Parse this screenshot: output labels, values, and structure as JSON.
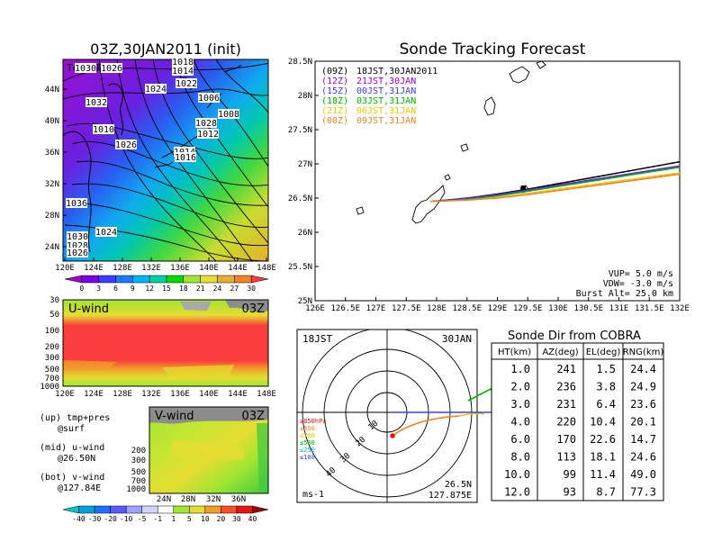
{
  "main_map": {
    "title": "03Z,30JAN2011 (init)",
    "overlay_label": "Temp+Pres",
    "x_ticks": [
      "120E",
      "124E",
      "128E",
      "132E",
      "136E",
      "140E",
      "144E",
      "148E"
    ],
    "y_ticks": [
      "24N",
      "28N",
      "32N",
      "36N",
      "40N",
      "44N"
    ],
    "colorbar_labels": [
      "0",
      "3",
      "6",
      "9",
      "12",
      "15",
      "18",
      "21",
      "24",
      "27",
      "30"
    ],
    "colorbar_colors": [
      "#a000c8",
      "#7a00e6",
      "#3c3cff",
      "#1e78ff",
      "#00b4ff",
      "#00d2a0",
      "#00dc00",
      "#a0e632",
      "#e6dc32",
      "#e6af2d",
      "#f08228",
      "#fa3c3c"
    ],
    "pressure_labels": [
      "1018",
      "1014",
      "1026",
      "1030",
      "1022",
      "1024",
      "1032",
      "1006",
      "1008",
      "1028",
      "1010",
      "1012",
      "1026",
      "1014",
      "1016",
      "1036",
      "1024",
      "1030",
      "1028",
      "1026"
    ]
  },
  "u_wind": {
    "title": "U-wind",
    "time": "03Z",
    "y_ticks": [
      "30",
      "50",
      "100",
      "200",
      "300",
      "500",
      "700",
      "1000"
    ],
    "x_ticks": [
      "120E",
      "124E",
      "128E",
      "132E",
      "136E",
      "140E",
      "144E",
      "148E"
    ]
  },
  "v_wind": {
    "title": "V-wind",
    "time": "03Z",
    "y_ticks": [
      "200",
      "300",
      "500",
      "700",
      "1000"
    ],
    "x_ticks": [
      "24N",
      "28N",
      "32N",
      "36N"
    ],
    "colorbar_labels": [
      "-40",
      "-30",
      "-20",
      "-10",
      "-5",
      "-1",
      "1",
      "5",
      "10",
      "20",
      "30",
      "40"
    ],
    "colorbar_colors": [
      "#00c8c8",
      "#00a0dc",
      "#1e6eff",
      "#5a5aff",
      "#a0a0ff",
      "#d2d2ff",
      "#ffffff",
      "#a0e632",
      "#e6dc32",
      "#f0a028",
      "#fa5028",
      "#e61414",
      "#a00000"
    ]
  },
  "legend_notes": {
    "up": "(up) tmp+pres",
    "up2": "@surf",
    "mid": "(mid) u-wind",
    "mid2": "@26.50N",
    "bot": "(bot) v-wind",
    "bot2": "@127.84E"
  },
  "track": {
    "title": "Sonde Tracking Forecast",
    "x_ticks": [
      "126E",
      "126.5E",
      "127E",
      "127.5E",
      "128E",
      "128.5E",
      "129E",
      "129.5E",
      "130E",
      "130.5E",
      "131E",
      "131.5E",
      "132E"
    ],
    "y_ticks": [
      "25N",
      "25.5N",
      "26N",
      "26.5N",
      "27N",
      "27.5N",
      "28N",
      "28.5N"
    ],
    "legend": [
      {
        "utc": "(09Z)",
        "jst": "18JST,30JAN2011",
        "color": "#000000"
      },
      {
        "utc": "(12Z)",
        "jst": "21JST,30JAN",
        "color": "#a000c8"
      },
      {
        "utc": "(15Z)",
        "jst": "00JST,31JAN",
        "color": "#3c3cff"
      },
      {
        "utc": "(18Z)",
        "jst": "03JST,31JAN",
        "color": "#00b400"
      },
      {
        "utc": "(21Z)",
        "jst": "06JST,31JAN",
        "color": "#f0c800"
      },
      {
        "utc": "(00Z)",
        "jst": "09JST,31JAN",
        "color": "#f08228"
      }
    ],
    "params": [
      "VUP= 5.0 m/s",
      "VDW= -3.0 m/s",
      "Burst Alt= 25.0 km"
    ]
  },
  "polar": {
    "time": "18JST",
    "date": "30JAN",
    "ring_labels": [
      "10",
      "20",
      "30",
      "40"
    ],
    "level_labels": [
      {
        "text": "≥850hPa",
        "color": "#e61414"
      },
      {
        "text": "≤850",
        "color": "#f08228"
      },
      {
        "text": "≤700",
        "color": "#e6c800"
      },
      {
        "text": "≤500",
        "color": "#00b400"
      },
      {
        "text": "≤250",
        "color": "#00b4dc"
      },
      {
        "text": "≤100",
        "color": "#3c3cff"
      }
    ],
    "units": "ms-1",
    "lat": "26.5N",
    "lon": "127.875E"
  },
  "table": {
    "title": "Sonde Dir from COBRA",
    "headers": [
      "HT(km)",
      "AZ(deg)",
      "EL(deg)",
      "RNG(km)"
    ],
    "rows": [
      [
        "1.0",
        "241",
        "1.5",
        "24.4"
      ],
      [
        "2.0",
        "236",
        "3.8",
        "24.9"
      ],
      [
        "3.0",
        "231",
        "6.4",
        "23.6"
      ],
      [
        "4.0",
        "220",
        "10.4",
        "20.1"
      ],
      [
        "6.0",
        "170",
        "22.6",
        "14.7"
      ],
      [
        "8.0",
        "113",
        "18.1",
        "24.6"
      ],
      [
        "10.0",
        "99",
        "11.4",
        "49.0"
      ],
      [
        "12.0",
        "93",
        "8.7",
        "77.3"
      ]
    ]
  },
  "chart_data": [
    {
      "type": "heatmap",
      "title": "03Z,30JAN2011 (init)",
      "variable": "Temp+Pres",
      "x_ticks": [
        "120E",
        "124E",
        "128E",
        "132E",
        "136E",
        "140E",
        "144E",
        "148E"
      ],
      "y_ticks": [
        "24N",
        "28N",
        "32N",
        "36N",
        "40N",
        "44N"
      ],
      "colorbar": [
        0,
        3,
        6,
        9,
        12,
        15,
        18,
        21,
        24,
        27,
        30
      ]
    },
    {
      "type": "heatmap",
      "title": "U-wind",
      "y_ticks_hPa": [
        30,
        50,
        100,
        200,
        300,
        500,
        700,
        1000
      ],
      "x_ticks": [
        "120E",
        "124E",
        "128E",
        "132E",
        "136E",
        "140E",
        "144E",
        "148E"
      ]
    },
    {
      "type": "heatmap",
      "title": "V-wind",
      "y_ticks_hPa": [
        200,
        300,
        500,
        700,
        1000
      ],
      "x_ticks": [
        "24N",
        "28N",
        "32N",
        "36N"
      ],
      "colorbar": [
        -40,
        -30,
        -20,
        -10,
        -5,
        -1,
        1,
        5,
        10,
        20,
        30,
        40
      ]
    },
    {
      "type": "line",
      "title": "Sonde Tracking Forecast",
      "xlim": [
        126,
        132
      ],
      "ylim": [
        25,
        28.5
      ],
      "series": [
        {
          "name": "(09Z) 18JST,30JAN2011",
          "x": [
            127.9,
            128.5,
            129,
            129.5,
            130,
            130.5,
            131,
            131.5,
            132
          ],
          "y": [
            26.45,
            26.5,
            26.56,
            26.63,
            26.71,
            26.79,
            26.87,
            26.95,
            27.03
          ]
        },
        {
          "name": "(12Z) 21JST,30JAN",
          "x": [
            127.9,
            128.5,
            129,
            129.5,
            130,
            130.5,
            131,
            131.5,
            132
          ],
          "y": [
            26.45,
            26.5,
            26.55,
            26.62,
            26.69,
            26.76,
            26.83,
            26.9,
            26.97
          ]
        },
        {
          "name": "(15Z) 00JST,31JAN",
          "x": [
            127.9,
            128.5,
            129,
            129.5,
            130,
            130.5,
            131,
            131.5,
            132
          ],
          "y": [
            26.45,
            26.49,
            26.54,
            26.61,
            26.68,
            26.75,
            26.82,
            26.89,
            26.96
          ]
        },
        {
          "name": "(18Z) 03JST,31JAN",
          "x": [
            127.9,
            128.5,
            129,
            129.5,
            130,
            130.5,
            131,
            131.5,
            132
          ],
          "y": [
            26.45,
            26.48,
            26.53,
            26.6,
            26.67,
            26.74,
            26.81,
            26.88,
            26.95
          ]
        },
        {
          "name": "(21Z) 06JST,31JAN",
          "x": [
            127.9,
            128.5,
            129,
            129.5,
            130,
            130.5,
            131,
            131.5,
            132
          ],
          "y": [
            26.45,
            26.47,
            26.51,
            26.57,
            26.63,
            26.69,
            26.75,
            26.81,
            26.87
          ]
        },
        {
          "name": "(00Z) 09JST,31JAN",
          "x": [
            127.9,
            128.5,
            129,
            129.5,
            130,
            130.5,
            131,
            131.5,
            132
          ],
          "y": [
            26.45,
            26.47,
            26.5,
            26.55,
            26.61,
            26.67,
            26.73,
            26.79,
            26.85
          ]
        }
      ],
      "params": {
        "VUP_m_s": 5.0,
        "VDW_m_s": -3.0,
        "Burst_Alt_km": 25.0
      }
    },
    {
      "type": "table",
      "title": "Sonde Dir from COBRA",
      "columns": [
        "HT(km)",
        "AZ(deg)",
        "EL(deg)",
        "RNG(km)"
      ],
      "rows": [
        [
          1.0,
          241,
          1.5,
          24.4
        ],
        [
          2.0,
          236,
          3.8,
          24.9
        ],
        [
          3.0,
          231,
          6.4,
          23.6
        ],
        [
          4.0,
          220,
          10.4,
          20.1
        ],
        [
          6.0,
          170,
          22.6,
          14.7
        ],
        [
          8.0,
          113,
          18.1,
          24.6
        ],
        [
          10.0,
          99,
          11.4,
          49.0
        ],
        [
          12.0,
          93,
          8.7,
          77.3
        ]
      ]
    }
  ]
}
